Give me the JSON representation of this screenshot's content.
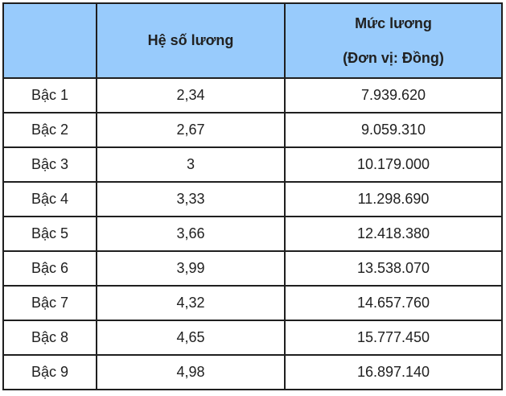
{
  "chart_data": {
    "type": "table",
    "header": {
      "col1": "",
      "col2": "Hệ số lương",
      "col3_line1": "Mức lương",
      "col3_line2": "(Đơn vị: Đồng)"
    },
    "rows": [
      [
        "Bậc 1",
        "2,34",
        "7.939.620"
      ],
      [
        "Bậc 2",
        "2,67",
        "9.059.310"
      ],
      [
        "Bậc 3",
        "3",
        "10.179.000"
      ],
      [
        "Bậc 4",
        "3,33",
        "11.298.690"
      ],
      [
        "Bậc 5",
        "3,66",
        "12.418.380"
      ],
      [
        "Bậc 6",
        "3,99",
        "13.538.070"
      ],
      [
        "Bậc 7",
        "4,32",
        "14.657.760"
      ],
      [
        "Bậc 8",
        "4,65",
        "15.777.450"
      ],
      [
        "Bậc 9",
        "4,98",
        "16.897.140"
      ]
    ],
    "coefficients": [
      2.34,
      2.67,
      3,
      3.33,
      3.66,
      3.99,
      4.32,
      4.65,
      4.98
    ],
    "salaries_vnd": [
      7939620,
      9059310,
      10179000,
      11298690,
      12418380,
      13538070,
      14657760,
      15777450,
      16897140
    ]
  },
  "colors": {
    "header_bg": "#98cbfc",
    "border": "#1f1f1f",
    "text": "#212121",
    "body_bg": "#ffffff"
  }
}
